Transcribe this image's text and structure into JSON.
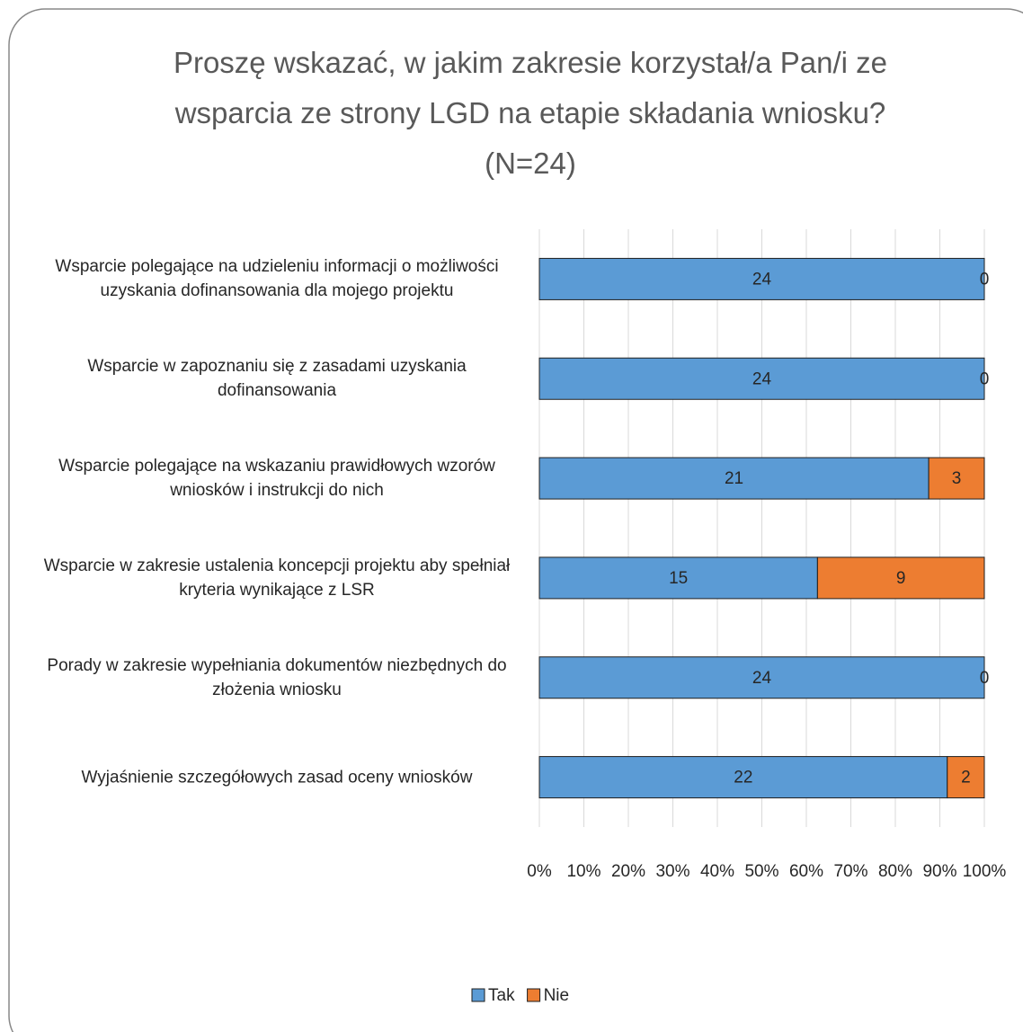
{
  "chart_data": {
    "type": "bar",
    "orientation": "horizontal",
    "stack": "percent",
    "title": "Proszę wskazać, w jakim zakresie korzystał/a Pan/i ze wsparcia ze strony LGD na etapie składania wniosku? (N=24)",
    "categories": [
      "Wsparcie polegające na udzieleniu informacji o możliwości uzyskania dofinansowania dla mojego projektu",
      "Wsparcie w zapoznaniu się z zasadami uzyskania dofinansowania",
      "Wsparcie polegające na wskazaniu prawidłowych wzorów wniosków i instrukcji do nich",
      "Wsparcie w zakresie ustalenia koncepcji projektu aby spełniał kryteria wynikające z LSR",
      "Porady w zakresie wypełniania dokumentów niezbędnych do złożenia wniosku",
      "Wyjaśnienie szczegółowych zasad oceny wniosków"
    ],
    "series": [
      {
        "name": "Tak",
        "color": "#5b9bd5",
        "values": [
          24,
          24,
          21,
          15,
          24,
          22
        ]
      },
      {
        "name": "Nie",
        "color": "#ed7d31",
        "values": [
          0,
          0,
          3,
          9,
          0,
          2
        ]
      }
    ],
    "xlim": [
      0,
      100
    ],
    "xticks": [
      {
        "value": 0,
        "label": "0%"
      },
      {
        "value": 10,
        "label": "10%"
      },
      {
        "value": 20,
        "label": "20%"
      },
      {
        "value": 30,
        "label": "30%"
      },
      {
        "value": 40,
        "label": "40%"
      },
      {
        "value": 50,
        "label": "50%"
      },
      {
        "value": 60,
        "label": "60%"
      },
      {
        "value": 70,
        "label": "70%"
      },
      {
        "value": 80,
        "label": "80%"
      },
      {
        "value": 90,
        "label": "90%"
      },
      {
        "value": 100,
        "label": "100%"
      }
    ],
    "grid": true,
    "legend": "bottom"
  }
}
